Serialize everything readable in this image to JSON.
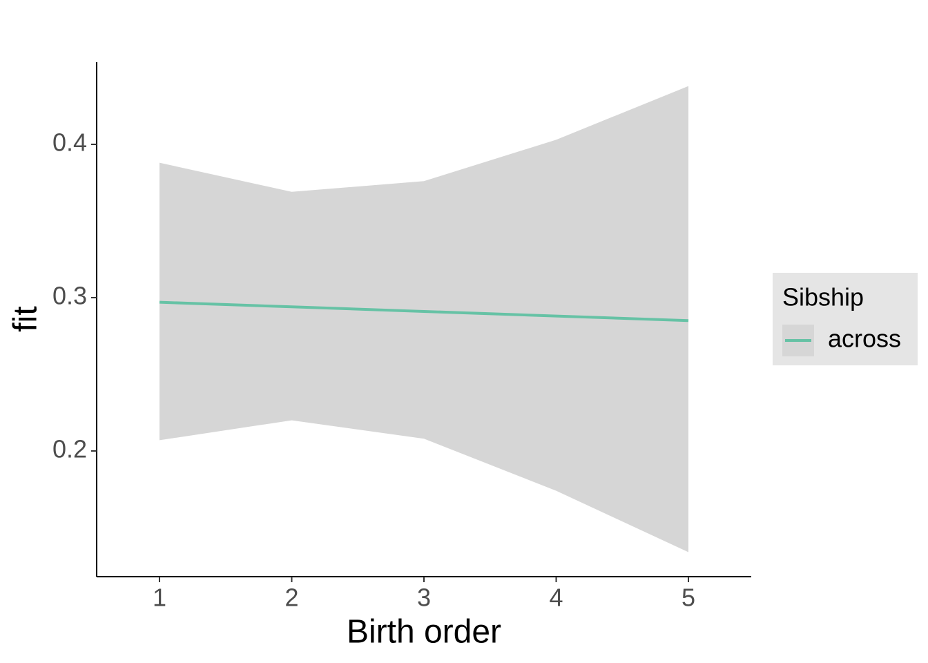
{
  "chart_data": {
    "type": "line",
    "x_label": "Birth order",
    "y_label": "fit",
    "x": [
      1,
      2,
      3,
      4,
      5
    ],
    "series": [
      {
        "name": "across",
        "color": "#66c2a5",
        "values": [
          0.297,
          0.294,
          0.291,
          0.288,
          0.285
        ],
        "lower": [
          0.207,
          0.22,
          0.208,
          0.174,
          0.134
        ],
        "upper": [
          0.388,
          0.369,
          0.376,
          0.403,
          0.438
        ],
        "band_color": "#d6d6d6"
      }
    ],
    "xlim": [
      0.525,
      5.475
    ],
    "xticks": [
      1,
      2,
      3,
      4,
      5
    ],
    "ylim": [
      0.118,
      0.4536
    ],
    "yticks": [
      0.2,
      0.3,
      0.4
    ],
    "legend_title": "Sibship",
    "legend_position": "right",
    "grid": false
  }
}
